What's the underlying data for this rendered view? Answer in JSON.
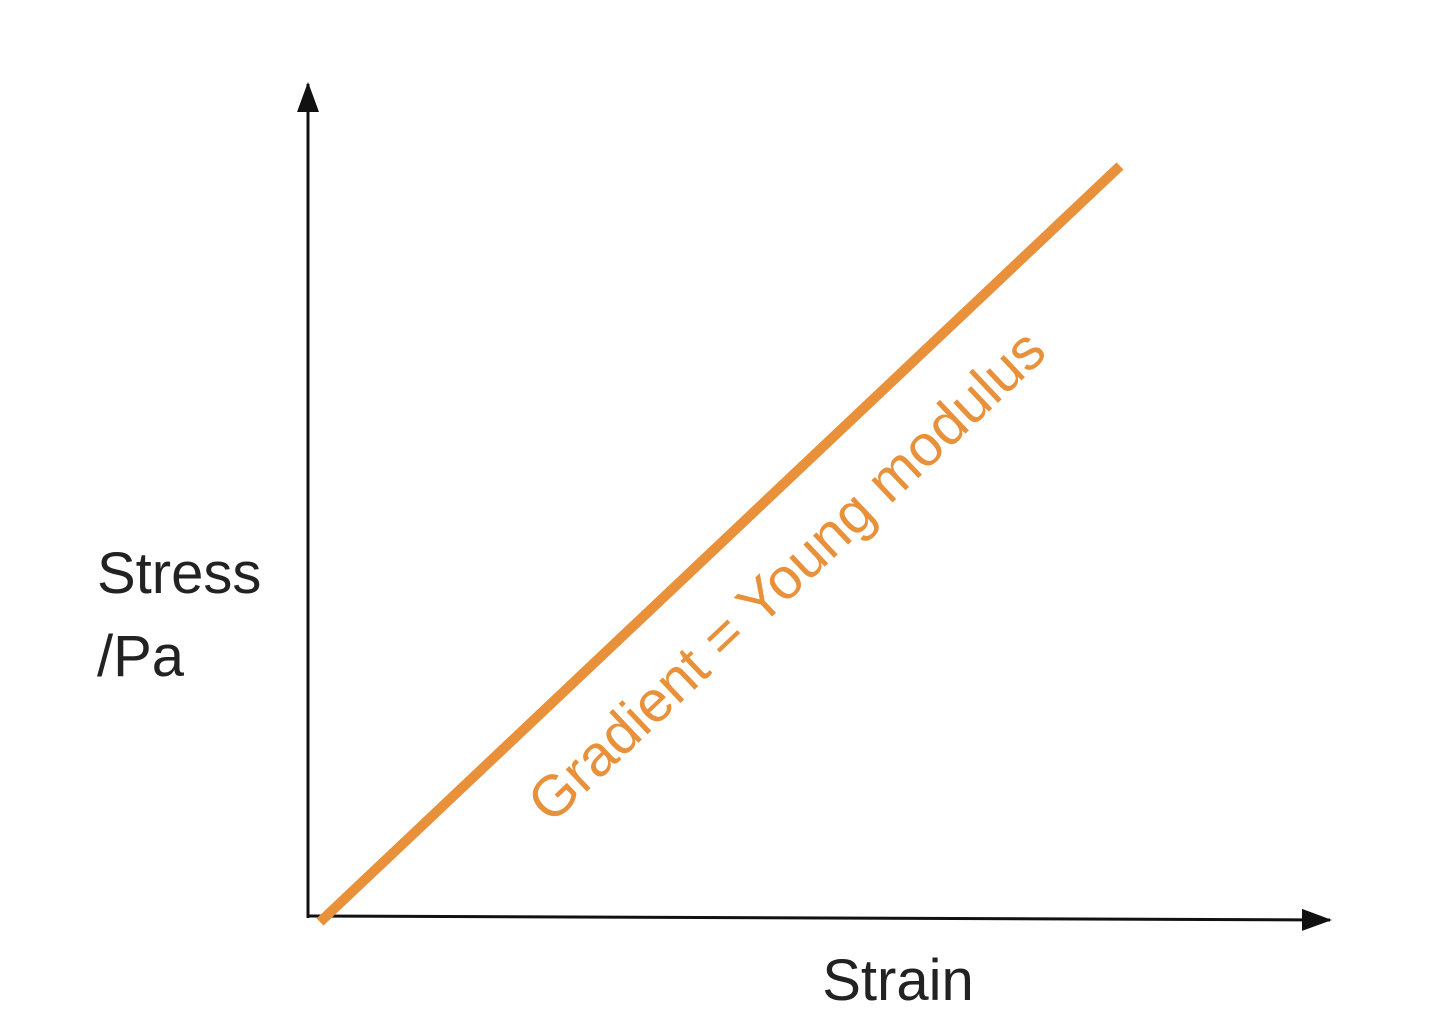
{
  "y_axis_label": {
    "line1": "Stress",
    "line2": "/Pa"
  },
  "x_axis_label": "Strain",
  "line_label": "Gradient = Young modulus"
}
